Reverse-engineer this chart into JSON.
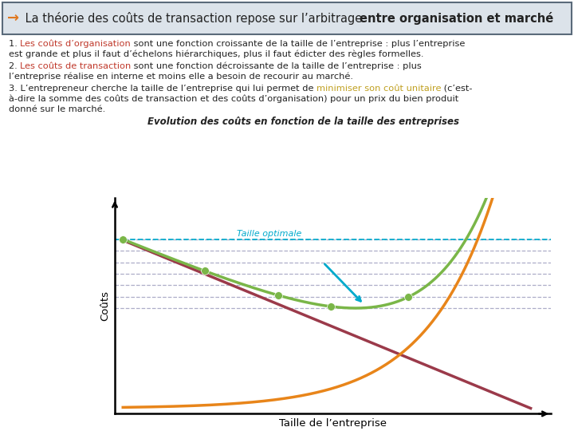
{
  "title_arrow": "→",
  "title_normal": " La théorie des coûts de transaction repose sur l’arbitrage ",
  "title_bold": "entre organisation et marché",
  "header_bg": "#dce3ea",
  "title_border": "#5a6a7a",
  "para1_prefix": "1. ",
  "para1_colored": "Les coûts d’organisation",
  "para1_colored_color": "#c0392b",
  "para1_rest": " sont une fonction croissante de la taille de l’entreprise : plus l’entreprise est grande et plus il faut d’échelons hiérarchiques, plus il faut édicter des règles formelles.",
  "para2_prefix": "2. ",
  "para2_colored": "Les coûts de transaction",
  "para2_colored_color": "#c0392b",
  "para2_rest": " sont une fonction décroissante de la taille de l’entreprise : plus l’entreprise réalise en interne et moins elle a besoin de recourir au marché.",
  "para3_start": "3. L’entrepreneur cherche la taille de l’entreprise qui lui permet de ",
  "para3_colored": "minimiser son coût unitaire",
  "para3_colored_color": "#c0a020",
  "para3_end": " (c’est-à-dire la somme des coûts de transaction et des coûts d’organisation) pour un prix du bien produit donné sur le marché.",
  "chart_title": "Evolution des coûts en fonction de la taille des entreprises",
  "ylabel": "Coûts",
  "xlabel": "Taille de l’entreprise",
  "taille_optimale_label": "Taille optimale",
  "taille_optimale_color": "#00aacc",
  "green_color": "#7ab648",
  "red_color": "#9b3a4a",
  "orange_color": "#e8851a",
  "dashed_color": "#9999bb",
  "bg_color": "#ffffff",
  "arrow_color": "#e07820"
}
